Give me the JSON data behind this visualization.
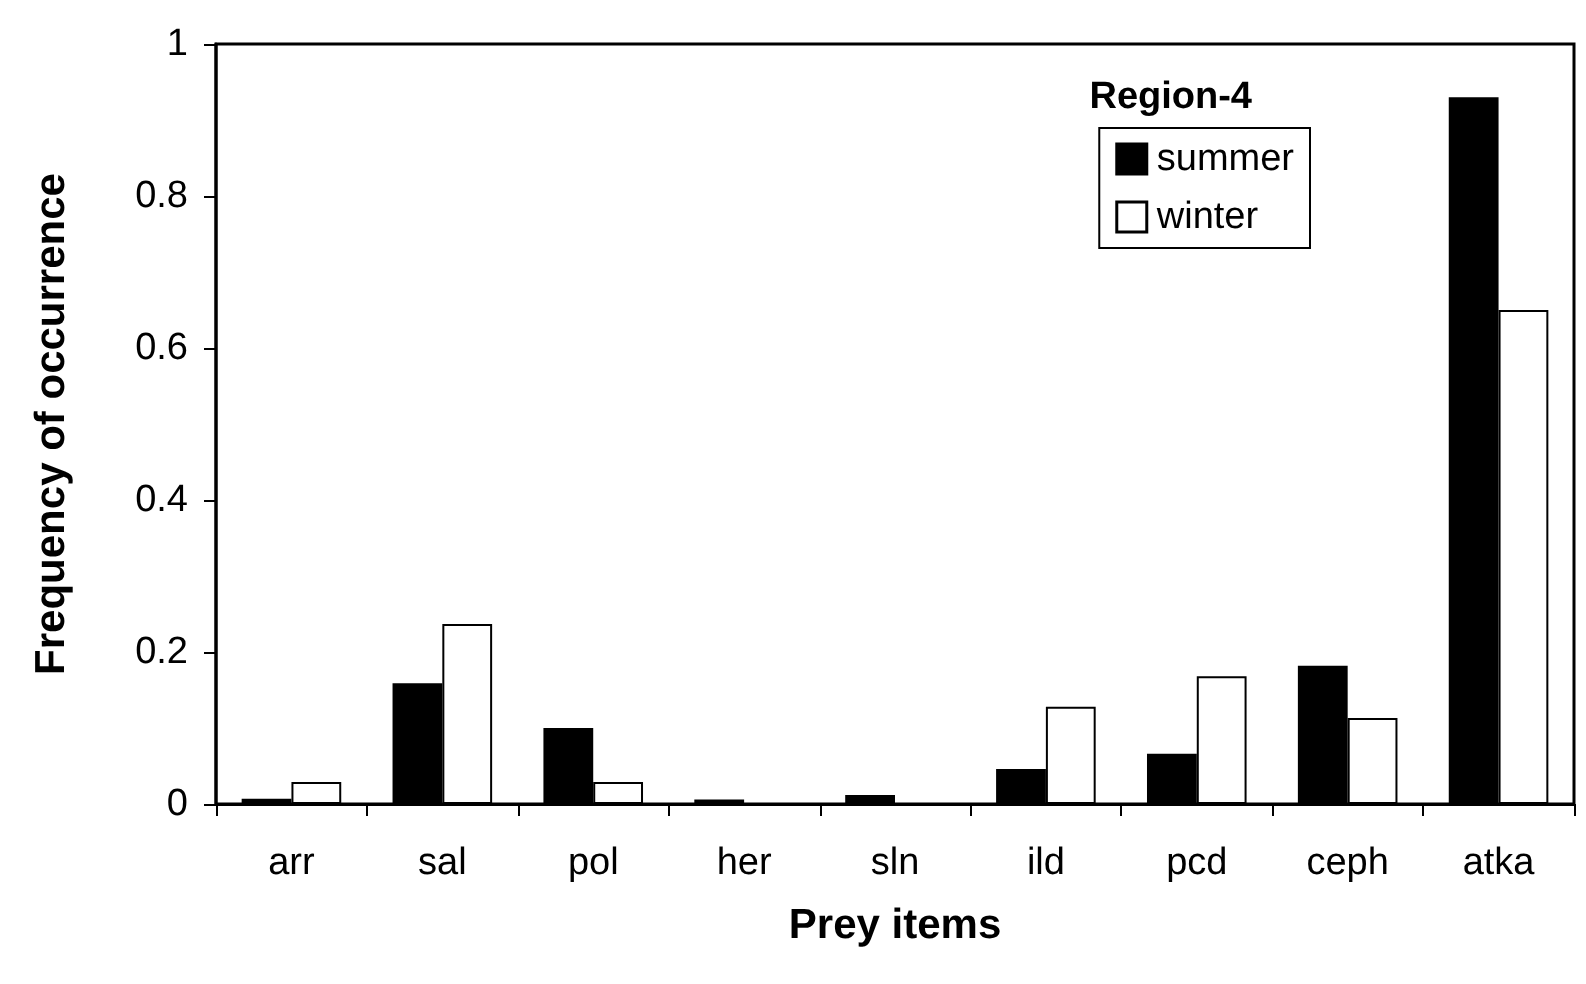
{
  "chart_data": {
    "type": "bar",
    "xlabel": "Prey items",
    "ylabel": "Frequency of occurrence",
    "legend_title": "Region-4",
    "categories": [
      "arr",
      "sal",
      "pol",
      "her",
      "sln",
      "ild",
      "pcd",
      "ceph",
      "atka"
    ],
    "series": [
      {
        "name": "summer",
        "color": "#000000",
        "values": [
          0.007,
          0.159,
          0.1,
          0.006,
          0.012,
          0.046,
          0.066,
          0.182,
          0.93
        ]
      },
      {
        "name": "winter",
        "color": "#ffffff",
        "values": [
          0.029,
          0.237,
          0.029,
          0,
          0,
          0.128,
          0.168,
          0.113,
          0.65
        ]
      }
    ],
    "ylim": [
      0,
      1
    ],
    "yticks": [
      0,
      0.2,
      0.4,
      0.6,
      0.8,
      1
    ],
    "grid": false,
    "legend": "top right"
  }
}
